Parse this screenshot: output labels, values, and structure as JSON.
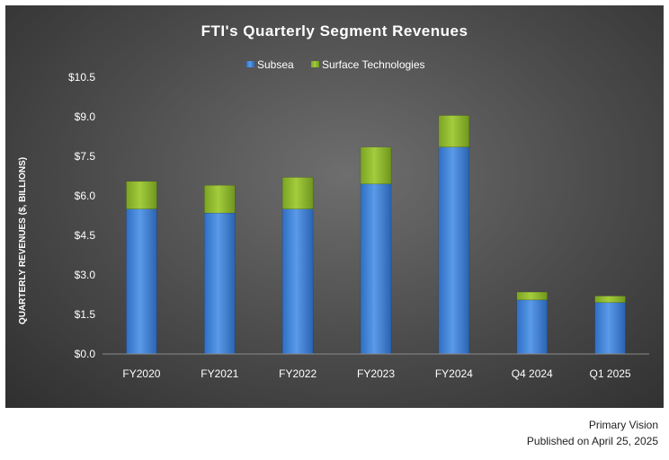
{
  "chart_data": {
    "type": "bar",
    "stacked": true,
    "title": "FTI's Quarterly Segment Revenues",
    "ylabel": "QUARTERLY REVENUES ($, BILLIONS)",
    "xlabel": "",
    "categories": [
      "FY2020",
      "FY2021",
      "FY2022",
      "FY2023",
      "FY2024",
      "Q4 2024",
      "Q1 2025"
    ],
    "series": [
      {
        "name": "Subsea",
        "color": "#3a7fd5",
        "values": [
          5.5,
          5.35,
          5.5,
          6.45,
          7.85,
          2.05,
          1.95
        ]
      },
      {
        "name": "Surface Technologies",
        "color": "#8ab42a",
        "values": [
          1.05,
          1.05,
          1.2,
          1.4,
          1.2,
          0.3,
          0.25
        ]
      }
    ],
    "ylim": [
      0,
      10.5
    ],
    "yticks": [
      "$0.0",
      "$1.5",
      "$3.0",
      "$4.5",
      "$6.0",
      "$7.5",
      "$9.0",
      "$10.5"
    ],
    "ytick_values": [
      0,
      1.5,
      3.0,
      4.5,
      6.0,
      7.5,
      9.0,
      10.5
    ],
    "legend_position": "top-center",
    "grid": false
  },
  "footer": {
    "source": "Primary Vision",
    "published": "Published on April 25, 2025"
  }
}
